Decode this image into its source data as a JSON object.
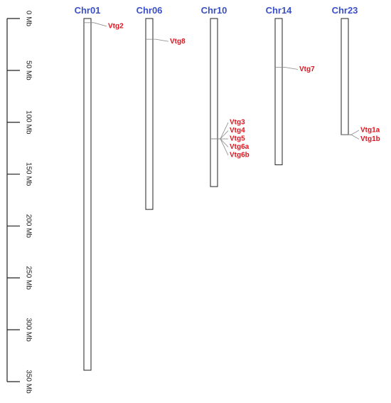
{
  "scale": {
    "unit": "Mb",
    "max": 350,
    "ticks": [
      {
        "value": 0,
        "label": "0 Mb"
      },
      {
        "value": 50,
        "label": "50 Mb"
      },
      {
        "value": 100,
        "label": "100 Mb"
      },
      {
        "value": 150,
        "label": "150 Mb"
      },
      {
        "value": 200,
        "label": "200 Mb"
      },
      {
        "value": 250,
        "label": "250 Mb"
      },
      {
        "value": 300,
        "label": "300 Mb"
      },
      {
        "value": 350,
        "label": "350 Mb"
      }
    ]
  },
  "colors": {
    "chromosome_title": "#3a4fc8",
    "gene_label": "#e0141e",
    "chromosome_outline": "#222222",
    "connector": "#888888"
  },
  "chromosomes": [
    {
      "name": "Chr01",
      "length": 339,
      "genes": [
        {
          "name": "Vtg2",
          "position": 4
        }
      ]
    },
    {
      "name": "Chr06",
      "length": 184,
      "genes": [
        {
          "name": "Vtg8",
          "position": 20
        }
      ]
    },
    {
      "name": "Chr10",
      "length": 162,
      "genes": [
        {
          "name": "Vtg3",
          "position": 116
        },
        {
          "name": "Vtg4",
          "position": 116
        },
        {
          "name": "Vtg5",
          "position": 116
        },
        {
          "name": "Vtg6a",
          "position": 116
        },
        {
          "name": "Vtg6b",
          "position": 116
        }
      ]
    },
    {
      "name": "Chr14",
      "length": 141,
      "genes": [
        {
          "name": "Vtg7",
          "position": 47
        }
      ]
    },
    {
      "name": "Chr23",
      "length": 112,
      "genes": [
        {
          "name": "Vtg1a",
          "position": 112
        },
        {
          "name": "Vtg1b",
          "position": 112
        }
      ]
    }
  ]
}
